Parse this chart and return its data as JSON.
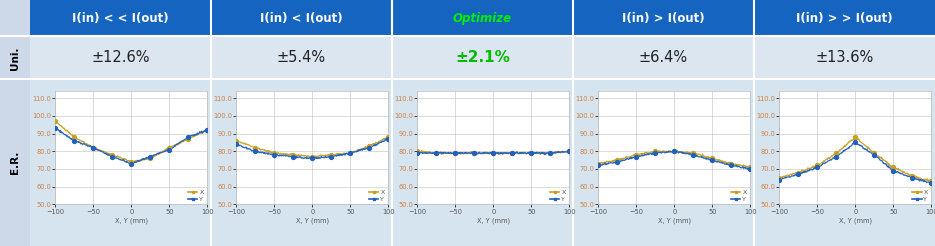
{
  "headers": [
    "I(in) < < I(out)",
    "I(in) < I(out)",
    "Optimize",
    "I(in) > I(out)",
    "I(in) > > I(out)"
  ],
  "uni_values": [
    "±12.6%",
    "±5.4%",
    "±2.1%",
    "±6.4%",
    "±13.6%"
  ],
  "header_bg": "#1565c0",
  "header_text": "#ffffff",
  "optimize_text": "#00ee00",
  "uni_bg": "#dce6f1",
  "uni_text": "#222222",
  "uni_optimize_text": "#00bb00",
  "er_bg": "#d6e4f0",
  "plot_bg": "#ffffff",
  "label_col_bg": "#cdd9e8",
  "ylim": [
    50.0,
    114.0
  ],
  "yticks": [
    50.0,
    60.0,
    70.0,
    80.0,
    90.0,
    100.0,
    110.0
  ],
  "ytick_labels": [
    "50.0",
    "60.0",
    "70.0",
    "80.0",
    "90.0",
    "100.0",
    "110.0"
  ],
  "xlim": [
    -100,
    100
  ],
  "xticks": [
    -100,
    -50,
    0,
    50,
    100
  ],
  "xlabel": "X, Y (mm)",
  "color_x": "#c8a020",
  "color_y": "#2060c0",
  "ytick_color": "#d08040",
  "xtick_color": "#555555",
  "grid_color": "#cccccc",
  "plots": [
    {
      "x_data": [
        -100,
        -75,
        -50,
        -25,
        0,
        25,
        50,
        75,
        100
      ],
      "y_x": [
        97,
        88,
        82,
        78,
        74,
        76,
        82,
        87,
        92
      ],
      "y_y": [
        93,
        86,
        82,
        77,
        73,
        77,
        81,
        88,
        92
      ]
    },
    {
      "x_data": [
        -100,
        -75,
        -50,
        -25,
        0,
        25,
        50,
        75,
        100
      ],
      "y_x": [
        86,
        82,
        79,
        78,
        77,
        78,
        79,
        83,
        88
      ],
      "y_y": [
        84,
        80,
        78,
        77,
        76,
        77,
        79,
        82,
        87
      ]
    },
    {
      "x_data": [
        -100,
        -75,
        -50,
        -25,
        0,
        25,
        50,
        75,
        100
      ],
      "y_x": [
        80,
        79,
        79,
        79,
        79,
        79,
        79,
        79,
        80
      ],
      "y_y": [
        79,
        79,
        79,
        79,
        79,
        79,
        79,
        79,
        80
      ]
    },
    {
      "x_data": [
        -100,
        -75,
        -50,
        -25,
        0,
        25,
        50,
        75,
        100
      ],
      "y_x": [
        73,
        75,
        78,
        80,
        80,
        79,
        76,
        73,
        71
      ],
      "y_y": [
        72,
        74,
        77,
        79,
        80,
        78,
        75,
        72,
        70
      ]
    },
    {
      "x_data": [
        -100,
        -75,
        -50,
        -25,
        0,
        25,
        50,
        75,
        100
      ],
      "y_x": [
        65,
        68,
        72,
        79,
        88,
        79,
        71,
        66,
        63
      ],
      "y_y": [
        64,
        67,
        71,
        77,
        85,
        78,
        69,
        65,
        62
      ]
    }
  ],
  "legend_x_label": "X",
  "legend_y_label": "Y",
  "row_label_uni": "Uni.",
  "row_label_er": "E.R.",
  "header_fontsize": 8.5,
  "uni_fontsize": 10.5,
  "uni_opt_fontsize": 11.0,
  "row_label_fontsize": 7.5,
  "tick_fontsize": 4.8,
  "legend_fontsize": 4.5,
  "xlabel_fontsize": 4.8
}
